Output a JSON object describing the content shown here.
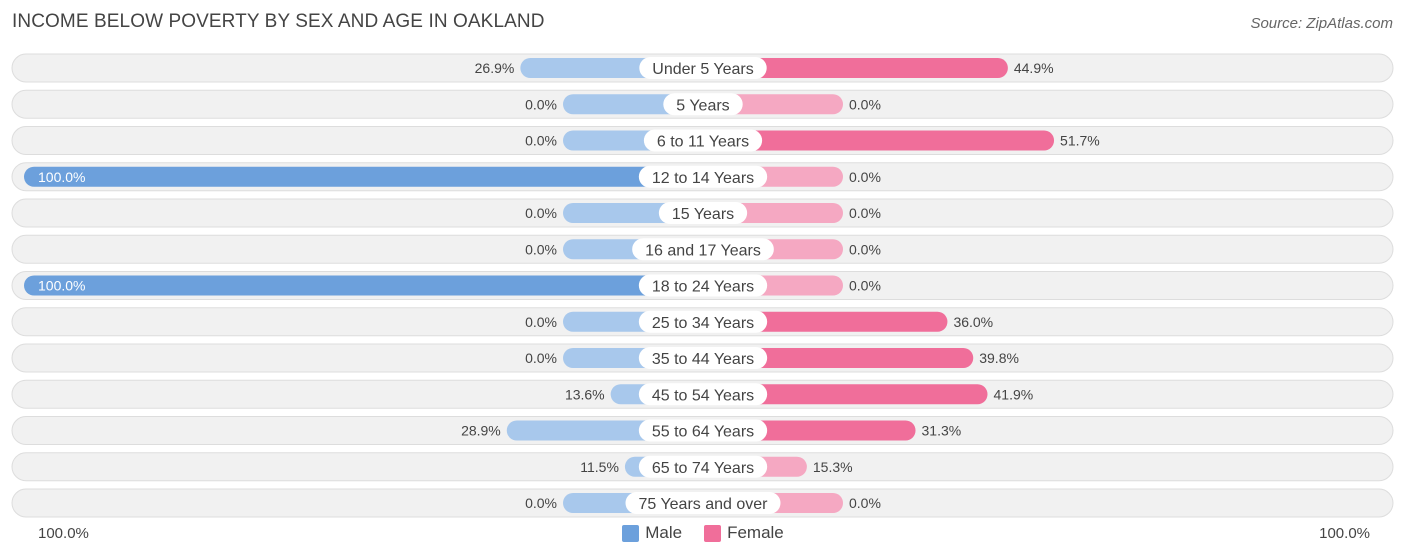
{
  "chart_data": {
    "type": "bar",
    "orientation": "diverging-horizontal",
    "title": "INCOME BELOW POVERTY BY SEX AND AGE IN OAKLAND",
    "source": "Source: ZipAtlas.com",
    "categories": [
      "Under 5 Years",
      "5 Years",
      "6 to 11 Years",
      "12 to 14 Years",
      "15 Years",
      "16 and 17 Years",
      "18 to 24 Years",
      "25 to 34 Years",
      "35 to 44 Years",
      "45 to 54 Years",
      "55 to 64 Years",
      "65 to 74 Years",
      "75 Years and over"
    ],
    "series": [
      {
        "name": "Male",
        "color": "#6ca0dc",
        "values": [
          26.9,
          0.0,
          0.0,
          100.0,
          0.0,
          0.0,
          100.0,
          0.0,
          0.0,
          13.6,
          28.9,
          11.5,
          0.0
        ]
      },
      {
        "name": "Female",
        "color": "#f06e9a",
        "values": [
          44.9,
          0.0,
          51.7,
          0.0,
          0.0,
          0.0,
          0.0,
          36.0,
          39.8,
          41.9,
          31.3,
          15.3,
          0.0
        ]
      }
    ],
    "value_labels": {
      "male": [
        "26.9%",
        "0.0%",
        "0.0%",
        "100.0%",
        "0.0%",
        "0.0%",
        "100.0%",
        "0.0%",
        "0.0%",
        "13.6%",
        "28.9%",
        "11.5%",
        "0.0%"
      ],
      "female": [
        "44.9%",
        "0.0%",
        "51.7%",
        "0.0%",
        "0.0%",
        "0.0%",
        "0.0%",
        "36.0%",
        "39.8%",
        "41.9%",
        "31.3%",
        "15.3%",
        "0.0%"
      ]
    },
    "axis_left_label": "100.0%",
    "axis_right_label": "100.0%",
    "xlim": [
      -100,
      100
    ],
    "legend": [
      "Male",
      "Female"
    ],
    "legend_position": "bottom-center"
  },
  "colors": {
    "male_strong": "#6ca0dc",
    "male_light": "#a8c8ec",
    "female_strong": "#f06e9a",
    "female_light": "#f5a8c2",
    "row_bg": "#f1f1f1",
    "row_border": "#dddddd"
  }
}
